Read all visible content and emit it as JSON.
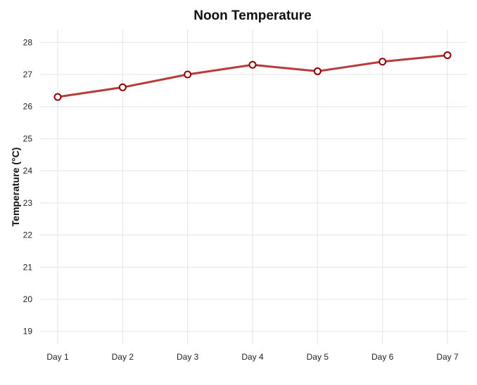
{
  "chart_data": {
    "type": "line",
    "title": "Noon Temperature",
    "xlabel": "",
    "ylabel": "Temperature (°C)",
    "categories": [
      "Day 1",
      "Day 2",
      "Day 3",
      "Day 4",
      "Day 5",
      "Day 6",
      "Day 7"
    ],
    "series": [
      {
        "values": [
          26.3,
          26.6,
          27.0,
          27.3,
          27.1,
          27.4,
          27.6
        ]
      }
    ],
    "yticks": [
      "19",
      "20",
      "21",
      "22",
      "23",
      "24",
      "25",
      "26",
      "27",
      "28"
    ],
    "ylim": [
      18.6,
      28.4
    ],
    "grid": true,
    "legend": "none",
    "colors": {
      "line": "#b83a3a",
      "marker_edge": "#8b0000",
      "marker_fill": "#ffffff",
      "grid": "#e3e3e3"
    }
  }
}
